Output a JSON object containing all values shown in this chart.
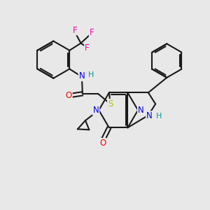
{
  "fig_bg": "#e8e8e8",
  "bond_color": "#1a1a1a",
  "bond_width": 1.5,
  "atoms": {
    "N_blue": "#0000dd",
    "O_red": "#ff0000",
    "S_yellow": "#bbbb00",
    "F_pink": "#ff00aa",
    "NH_teal": "#009999",
    "C_black": "#1a1a1a"
  },
  "xlim": [
    0,
    10
  ],
  "ylim": [
    0,
    10
  ]
}
